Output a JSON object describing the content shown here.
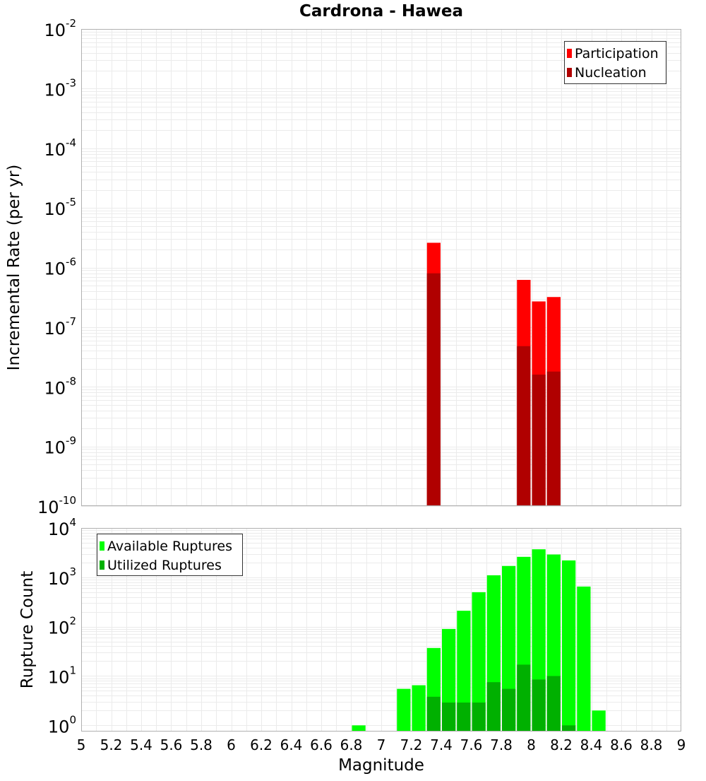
{
  "chart_data": [
    {
      "type": "bar",
      "title": "Cardrona - Hawea",
      "ylabel": "Incremental Rate (per yr)",
      "xlabel": "",
      "xlim": [
        5,
        9
      ],
      "ylim": [
        1e-10,
        0.01
      ],
      "yscale": "log",
      "grid": true,
      "legend_position": "top-right",
      "bin_width": 0.1,
      "x": [
        7.35,
        7.95,
        8.05,
        8.15
      ],
      "series": [
        {
          "name": "Participation",
          "color": "#ff0000",
          "values": [
            2.6e-06,
            6.2e-07,
            2.7e-07,
            3.2e-07
          ]
        },
        {
          "name": "Nucleation",
          "color": "#b00000",
          "values": [
            8e-07,
            4.8e-08,
            1.6e-08,
            1.8e-08
          ]
        }
      ]
    },
    {
      "type": "bar",
      "title": "",
      "ylabel": "Rupture Count",
      "xlabel": "Magnitude",
      "xlim": [
        5,
        9
      ],
      "ylim": [
        0.75,
        10000
      ],
      "yscale": "log",
      "grid": true,
      "legend_position": "top-left",
      "bin_width": 0.1,
      "x_ticks": [
        "5",
        "5.2",
        "5.4",
        "5.6",
        "5.8",
        "6",
        "6.2",
        "6.4",
        "6.6",
        "6.8",
        "7",
        "7.2",
        "7.4",
        "7.6",
        "7.8",
        "8",
        "8.2",
        "8.4",
        "8.6",
        "8.8",
        "9"
      ],
      "x": [
        6.85,
        7.15,
        7.25,
        7.35,
        7.45,
        7.55,
        7.65,
        7.75,
        7.85,
        7.95,
        8.05,
        8.15,
        8.25,
        8.35,
        8.45
      ],
      "series": [
        {
          "name": "Available Ruptures",
          "color": "#00ff00",
          "values": [
            1,
            5.5,
            6.5,
            37,
            90,
            210,
            500,
            1100,
            1700,
            2600,
            3700,
            2900,
            2200,
            650,
            2
          ]
        },
        {
          "name": "Utilized Ruptures",
          "color": "#00b000",
          "values": [
            0,
            0,
            0,
            3.8,
            2.9,
            2.9,
            2.9,
            7.5,
            5.5,
            17,
            8.5,
            10,
            1,
            0,
            0
          ]
        }
      ]
    }
  ]
}
